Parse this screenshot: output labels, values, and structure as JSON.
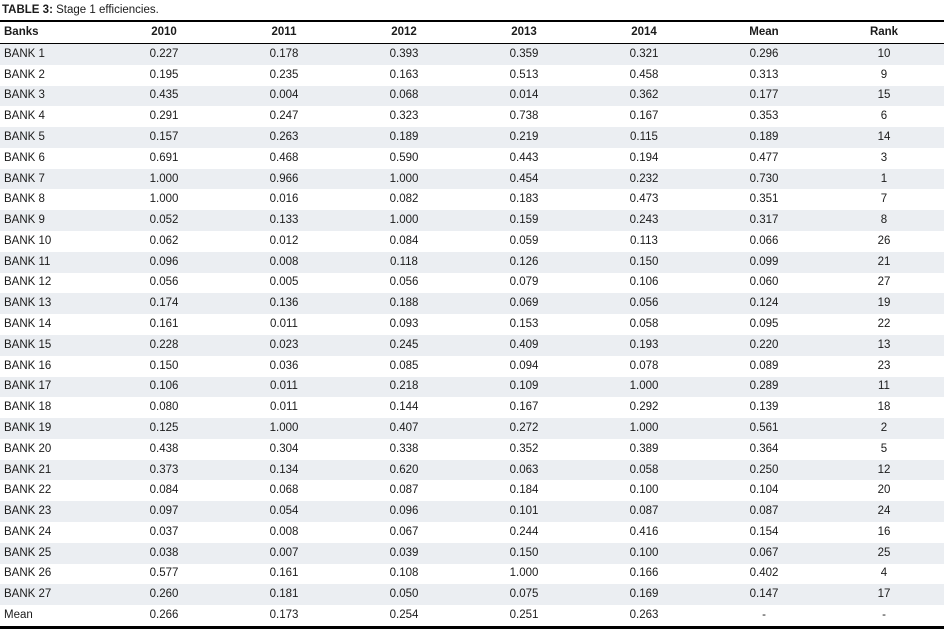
{
  "title": {
    "prefix": "TABLE 3:",
    "text": " Stage 1 efficiencies."
  },
  "colors": {
    "row_shade": "#EBEEF2",
    "rule": "#000000",
    "text": "#1B1B1B"
  },
  "table": {
    "columns": [
      "Banks",
      "2010",
      "2011",
      "2012",
      "2013",
      "2014",
      "Mean",
      "Rank"
    ],
    "rows": [
      [
        "BANK 1",
        "0.227",
        "0.178",
        "0.393",
        "0.359",
        "0.321",
        "0.296",
        "10"
      ],
      [
        "BANK 2",
        "0.195",
        "0.235",
        "0.163",
        "0.513",
        "0.458",
        "0.313",
        "9"
      ],
      [
        "BANK 3",
        "0.435",
        "0.004",
        "0.068",
        "0.014",
        "0.362",
        "0.177",
        "15"
      ],
      [
        "BANK 4",
        "0.291",
        "0.247",
        "0.323",
        "0.738",
        "0.167",
        "0.353",
        "6"
      ],
      [
        "BANK 5",
        "0.157",
        "0.263",
        "0.189",
        "0.219",
        "0.115",
        "0.189",
        "14"
      ],
      [
        "BANK 6",
        "0.691",
        "0.468",
        "0.590",
        "0.443",
        "0.194",
        "0.477",
        "3"
      ],
      [
        "BANK 7",
        "1.000",
        "0.966",
        "1.000",
        "0.454",
        "0.232",
        "0.730",
        "1"
      ],
      [
        "BANK 8",
        "1.000",
        "0.016",
        "0.082",
        "0.183",
        "0.473",
        "0.351",
        "7"
      ],
      [
        "BANK 9",
        "0.052",
        "0.133",
        "1.000",
        "0.159",
        "0.243",
        "0.317",
        "8"
      ],
      [
        "BANK 10",
        "0.062",
        "0.012",
        "0.084",
        "0.059",
        "0.113",
        "0.066",
        "26"
      ],
      [
        "BANK 11",
        "0.096",
        "0.008",
        "0.118",
        "0.126",
        "0.150",
        "0.099",
        "21"
      ],
      [
        "BANK 12",
        "0.056",
        "0.005",
        "0.056",
        "0.079",
        "0.106",
        "0.060",
        "27"
      ],
      [
        "BANK 13",
        "0.174",
        "0.136",
        "0.188",
        "0.069",
        "0.056",
        "0.124",
        "19"
      ],
      [
        "BANK 14",
        "0.161",
        "0.011",
        "0.093",
        "0.153",
        "0.058",
        "0.095",
        "22"
      ],
      [
        "BANK 15",
        "0.228",
        "0.023",
        "0.245",
        "0.409",
        "0.193",
        "0.220",
        "13"
      ],
      [
        "BANK 16",
        "0.150",
        "0.036",
        "0.085",
        "0.094",
        "0.078",
        "0.089",
        "23"
      ],
      [
        "BANK 17",
        "0.106",
        "0.011",
        "0.218",
        "0.109",
        "1.000",
        "0.289",
        "11"
      ],
      [
        "BANK 18",
        "0.080",
        "0.011",
        "0.144",
        "0.167",
        "0.292",
        "0.139",
        "18"
      ],
      [
        "BANK 19",
        "0.125",
        "1.000",
        "0.407",
        "0.272",
        "1.000",
        "0.561",
        "2"
      ],
      [
        "BANK 20",
        "0.438",
        "0.304",
        "0.338",
        "0.352",
        "0.389",
        "0.364",
        "5"
      ],
      [
        "BANK 21",
        "0.373",
        "0.134",
        "0.620",
        "0.063",
        "0.058",
        "0.250",
        "12"
      ],
      [
        "BANK 22",
        "0.084",
        "0.068",
        "0.087",
        "0.184",
        "0.100",
        "0.104",
        "20"
      ],
      [
        "BANK 23",
        "0.097",
        "0.054",
        "0.096",
        "0.101",
        "0.087",
        "0.087",
        "24"
      ],
      [
        "BANK 24",
        "0.037",
        "0.008",
        "0.067",
        "0.244",
        "0.416",
        "0.154",
        "16"
      ],
      [
        "BANK 25",
        "0.038",
        "0.007",
        "0.039",
        "0.150",
        "0.100",
        "0.067",
        "25"
      ],
      [
        "BANK 26",
        "0.577",
        "0.161",
        "0.108",
        "1.000",
        "0.166",
        "0.402",
        "4"
      ],
      [
        "BANK 27",
        "0.260",
        "0.181",
        "0.050",
        "0.075",
        "0.169",
        "0.147",
        "17"
      ],
      [
        "Mean",
        "0.266",
        "0.173",
        "0.254",
        "0.251",
        "0.263",
        "-",
        "-"
      ]
    ]
  }
}
